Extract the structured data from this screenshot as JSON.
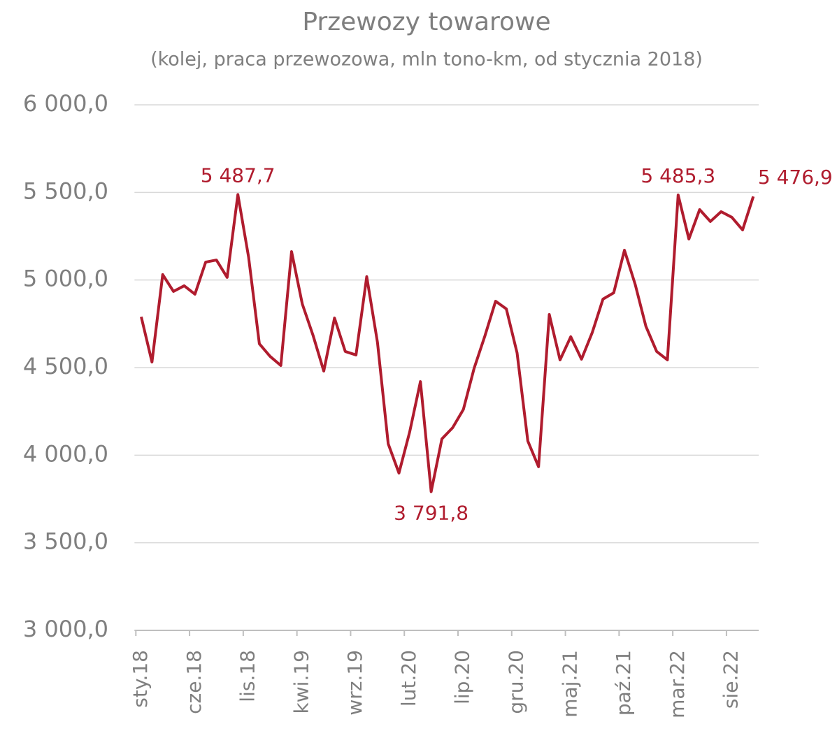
{
  "chart_data": {
    "type": "line",
    "title": "Przewozy towarowe",
    "subtitle": "(kolej, praca przewozowa, mln tono-km, od stycznia 2018)",
    "categories": [
      "sty.18",
      null,
      null,
      null,
      null,
      "cze.18",
      null,
      null,
      null,
      null,
      "lis.18",
      null,
      null,
      null,
      null,
      "kwi.19",
      null,
      null,
      null,
      null,
      "wrz.19",
      null,
      null,
      null,
      null,
      "lut.20",
      null,
      null,
      null,
      null,
      "lip.20",
      null,
      null,
      null,
      null,
      "gru.20",
      null,
      null,
      null,
      null,
      "maj.21",
      null,
      null,
      null,
      null,
      "paź.21",
      null,
      null,
      null,
      null,
      "mar.22",
      null,
      null,
      null,
      null,
      "sie.22",
      null,
      null
    ],
    "series": [
      {
        "name": "Przewozy towarowe",
        "color": "#b01c2e",
        "values": [
          4790,
          4532,
          5031,
          4935,
          4967,
          4919,
          5102,
          5114,
          5015,
          5487.7,
          5130,
          4636,
          4564,
          4512,
          5162,
          4863,
          4684,
          4480,
          4783,
          4592,
          4572,
          5019,
          4644,
          4065,
          3898,
          4133,
          4420,
          3791.8,
          4093,
          4157,
          4261,
          4496,
          4680,
          4879,
          4835,
          4584,
          4081,
          3934,
          4803,
          4544,
          4676,
          4548,
          4700,
          4891,
          4927,
          5170,
          4975,
          4735,
          4592,
          4544,
          5485.3,
          5234,
          5402,
          5334,
          5390,
          5358,
          5286,
          5476.9
        ],
        "value_labels": [
          null,
          null,
          null,
          null,
          null,
          null,
          null,
          null,
          null,
          "5 487,7",
          null,
          null,
          null,
          null,
          null,
          null,
          null,
          null,
          null,
          null,
          null,
          null,
          null,
          null,
          null,
          null,
          null,
          "3 791,8",
          null,
          null,
          null,
          null,
          null,
          null,
          null,
          null,
          null,
          null,
          null,
          null,
          null,
          null,
          null,
          null,
          null,
          null,
          null,
          null,
          null,
          null,
          "5 485,3",
          null,
          null,
          null,
          null,
          null,
          null,
          "5 476,9"
        ]
      }
    ],
    "ylim": [
      3000,
      6000
    ],
    "yticks": [
      {
        "value": 3000,
        "label": "3 000,0"
      },
      {
        "value": 3500,
        "label": "3 500,0"
      },
      {
        "value": 4000,
        "label": "4 000,0"
      },
      {
        "value": 4500,
        "label": "4 500,0"
      },
      {
        "value": 5000,
        "label": "5 000,0"
      },
      {
        "value": 5500,
        "label": "5 500,0"
      },
      {
        "value": 6000,
        "label": "6 000,0"
      }
    ],
    "grid": true
  }
}
